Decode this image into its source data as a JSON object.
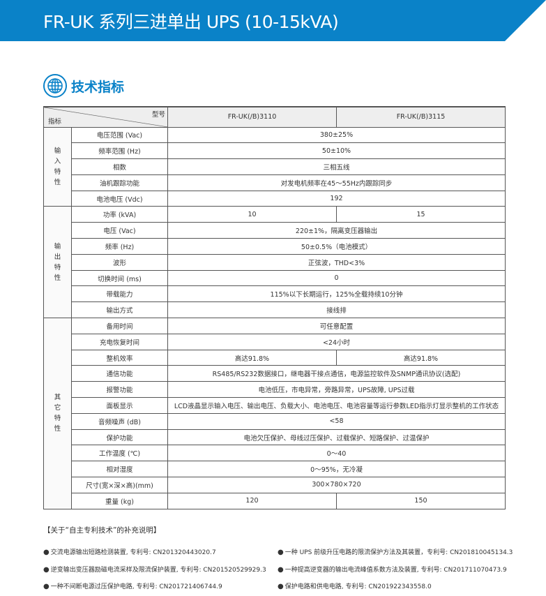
{
  "title": "FR-UK 系列三进单出 UPS (10-15kVA)",
  "section": {
    "title": "技术指标",
    "icon": "globe-icon"
  },
  "table": {
    "header": {
      "model_label": "型号",
      "index_label": "指标",
      "models": [
        "FR-UK(/B)3110",
        "FR-UK(/B)3115"
      ]
    },
    "groups": [
      {
        "name": "输\n入\n特\n性",
        "rows": [
          {
            "label": "电压范围 (Vac)",
            "values": [
              "380±25%"
            ]
          },
          {
            "label": "频率范围 (Hz)",
            "values": [
              "50±10%"
            ]
          },
          {
            "label": "相数",
            "values": [
              "三相五线"
            ]
          },
          {
            "label": "油机跟踪功能",
            "values": [
              "对发电机频率在45～55Hz内跟踪同步"
            ]
          },
          {
            "label": "电池电压 (Vdc)",
            "values": [
              "192"
            ]
          }
        ]
      },
      {
        "name": "输\n出\n特\n性",
        "rows": [
          {
            "label": "功率 (kVA)",
            "values": [
              "10",
              "15"
            ]
          },
          {
            "label": "电压 (Vac)",
            "values": [
              "220±1%，隔离变压器输出"
            ]
          },
          {
            "label": "频率 (Hz)",
            "values": [
              "50±0.5%（电池模式）"
            ]
          },
          {
            "label": "波形",
            "values": [
              "正弦波，THD<3%"
            ]
          },
          {
            "label": "切换时间 (ms)",
            "values": [
              "0"
            ]
          },
          {
            "label": "带载能力",
            "values": [
              "115%以下长期运行，125%全载持续10分钟"
            ]
          },
          {
            "label": "输出方式",
            "values": [
              "接线排"
            ]
          }
        ]
      },
      {
        "name": "其\n它\n特\n性",
        "rows": [
          {
            "label": "备用时间",
            "values": [
              "可任意配置"
            ]
          },
          {
            "label": "充电恢复时间",
            "values": [
              "<24小时"
            ]
          },
          {
            "label": "整机效率",
            "values": [
              "高达91.8%",
              "高达91.8%"
            ]
          },
          {
            "label": "通信功能",
            "values": [
              "RS485/RS232数据接口，继电器干接点通信，电源监控软件及SNMP通讯协议(选配)"
            ]
          },
          {
            "label": "报警功能",
            "values": [
              "电池低压，市电异常，旁路异常，UPS故障, UPS过载"
            ]
          },
          {
            "label": "面板显示",
            "values": [
              "LCD液晶显示输入电压、输出电压、负载大小、电池电压、电池容量等运行参数LED指示灯显示整机的工作状态"
            ]
          },
          {
            "label": "音频噪声 (dB)",
            "values": [
              "<58"
            ]
          },
          {
            "label": "保护功能",
            "values": [
              "电池欠压保护、母线过压保护、过载保护、短路保护、过温保护"
            ]
          },
          {
            "label": "工作温度 (℃)",
            "values": [
              "0～40"
            ]
          },
          {
            "label": "相对湿度",
            "values": [
              "0～95%，无冷凝"
            ]
          },
          {
            "label": "尺寸(宽×深×高)(mm)",
            "values": [
              "300×780×720"
            ]
          },
          {
            "label": "重量 (kg)",
            "values": [
              "120",
              "150"
            ]
          }
        ]
      }
    ]
  },
  "notes": {
    "title": "【关于“自主专利技术”的补充说明】",
    "left": [
      "交流电源输出短路检测装置, 专利号: CN2013204430​20.7",
      "逆变输出变压器励磁电流采样及限流保护装置, 专利号: CN201520529929.3",
      "一种不间断电源过压保护电路, 专利号: CN201721406744.9"
    ],
    "right": [
      "一种 UPS 前级升压电路的限流保护方法及其装置，专利号: CN201810045134.3",
      "一种提高逆变器的输出电流峰值系数方法及装置, 专利号: CN201711070473.9",
      "保护电路和供电电路, 专利号: CN201922343558.0"
    ]
  },
  "colors": {
    "brand": "#0a82c8"
  }
}
